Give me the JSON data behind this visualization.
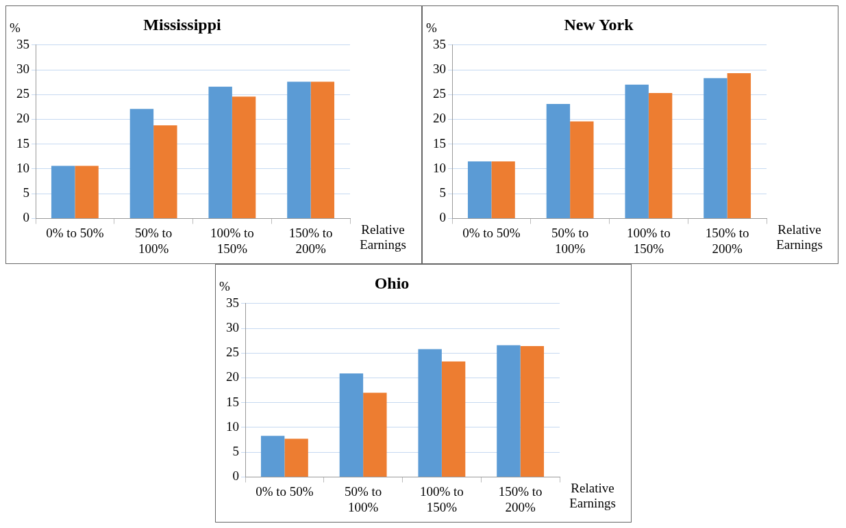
{
  "chart_data": [
    {
      "type": "bar",
      "title": "Mississippi",
      "ylabel": "%",
      "xlabel": "Relative Earnings",
      "categories": [
        "0% to 50%",
        "50% to 100%",
        "100% to 150%",
        "150% to 200%"
      ],
      "series": [
        {
          "color": "#5b9bd5",
          "values": [
            10.6,
            22.1,
            26.6,
            27.6
          ]
        },
        {
          "color": "#ed7d31",
          "values": [
            10.6,
            18.8,
            24.6,
            27.6
          ]
        }
      ],
      "ylim": [
        0,
        35
      ],
      "yticks": [
        0,
        5,
        10,
        15,
        20,
        25,
        30,
        35
      ],
      "grid": "y"
    },
    {
      "type": "bar",
      "title": "New York",
      "ylabel": "%",
      "xlabel": "Relative Earnings",
      "categories": [
        "0% to 50%",
        "50% to 100%",
        "100% to 150%",
        "150% to 200%"
      ],
      "series": [
        {
          "color": "#5b9bd5",
          "values": [
            11.5,
            23.1,
            27.0,
            28.3
          ]
        },
        {
          "color": "#ed7d31",
          "values": [
            11.5,
            19.6,
            25.3,
            29.3
          ]
        }
      ],
      "ylim": [
        0,
        35
      ],
      "yticks": [
        0,
        5,
        10,
        15,
        20,
        25,
        30,
        35
      ],
      "grid": "y"
    },
    {
      "type": "bar",
      "title": "Ohio",
      "ylabel": "%",
      "xlabel": "Relative Earnings",
      "categories": [
        "0% to 50%",
        "50% to 100%",
        "100% to 150%",
        "150% to 200%"
      ],
      "series": [
        {
          "color": "#5b9bd5",
          "values": [
            8.3,
            20.9,
            25.8,
            26.6
          ]
        },
        {
          "color": "#ed7d31",
          "values": [
            7.7,
            17.0,
            23.3,
            26.4
          ]
        }
      ],
      "ylim": [
        0,
        35
      ],
      "yticks": [
        0,
        5,
        10,
        15,
        20,
        25,
        30,
        35
      ],
      "grid": "y"
    }
  ]
}
